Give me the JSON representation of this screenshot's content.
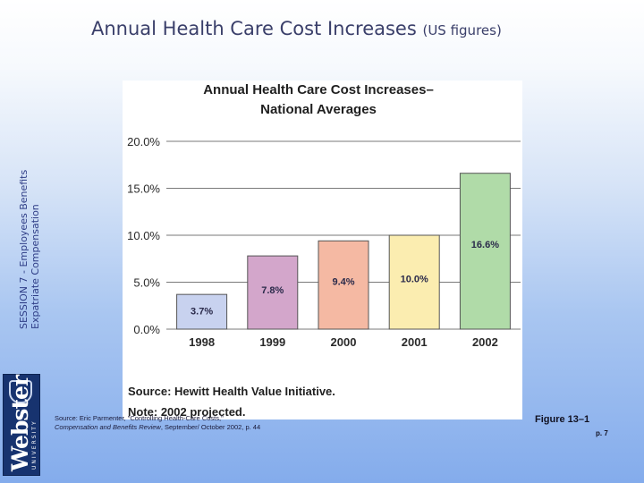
{
  "slide": {
    "title_main": "Annual Health Care Cost Increases",
    "title_suffix": "(US figures)",
    "side_line1": "SESSION 7 - Employees Benefits",
    "side_line2": "Expatriate Compensation",
    "logo_name": "Webster",
    "logo_sub": "UNIVERSITY",
    "source_line1": "Source: Eric Parmenter, \"Controlling Health-Care Costs,\"",
    "source_line2_italic": "Compensation and Benefits Review",
    "source_line2_rest": ", September/ October 2002, p. 44",
    "figure_label": "Figure 13–1",
    "page_label": "p. 7"
  },
  "chart_data": {
    "type": "bar",
    "title_line1": "Annual Health Care Cost Increases–",
    "title_line2": "National Averages",
    "categories": [
      "1998",
      "1999",
      "2000",
      "2001",
      "2002"
    ],
    "values": [
      3.7,
      7.8,
      9.4,
      10.0,
      16.6
    ],
    "value_labels": [
      "3.7%",
      "7.8%",
      "9.4%",
      "10.0%",
      "16.6%"
    ],
    "y_ticks": [
      0,
      5,
      10,
      15,
      20
    ],
    "y_tick_labels": [
      "0.0%",
      "5.0%",
      "10.0%",
      "15.0%",
      "20.0%"
    ],
    "ylim": [
      0,
      20
    ],
    "bar_colors": [
      "#c8d2ef",
      "#d3a6cb",
      "#f5b9a3",
      "#fbedb0",
      "#b0dba8"
    ],
    "source_note": "Source: Hewitt Health Value Initiative.",
    "note": "Note: 2002 projected."
  }
}
